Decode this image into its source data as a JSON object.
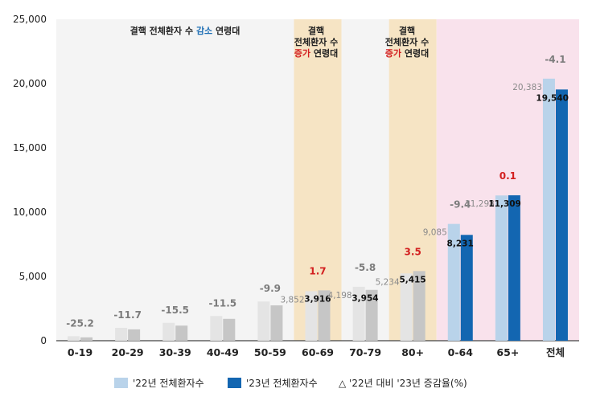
{
  "chart_data": {
    "type": "bar",
    "ylim": [
      0,
      25000
    ],
    "yticks": [
      "0",
      "5,000",
      "10,000",
      "15,000",
      "20,000",
      "25,000"
    ],
    "yticks_values": [
      0,
      5000,
      10000,
      15000,
      20000,
      25000
    ],
    "categories": [
      "0-19",
      "20-29",
      "30-39",
      "40-49",
      "50-59",
      "60-69",
      "70-79",
      "80+",
      "0-64",
      "65+",
      "전체"
    ],
    "series": [
      {
        "name": "'22년 전체환자수",
        "values": [
          350,
          1000,
          1390,
          1920,
          3050,
          3852,
          4198,
          5234,
          9085,
          11298,
          20383
        ],
        "value_labels": [
          "",
          "",
          "",
          "",
          "",
          "3,852",
          "4,198",
          "5,234",
          "9,085",
          "11,298",
          "20,383"
        ]
      },
      {
        "name": "'23년 전체환자수",
        "values": [
          262,
          883,
          1175,
          1700,
          2750,
          3916,
          3954,
          5415,
          8231,
          11309,
          19540
        ],
        "value_labels": [
          "",
          "",
          "",
          "",
          "",
          "3,916",
          "3,954",
          "5,415",
          "8,231",
          "11,309",
          "19,540"
        ]
      }
    ],
    "change_rate": {
      "name": "△ '22년 대비 '23년 증감율(%)",
      "labels": [
        "-25.2",
        "-11.7",
        "-15.5",
        "-11.5",
        "-9.9",
        "1.7",
        "-5.8",
        "3.5",
        "-9.4",
        "0.1",
        "-4.1"
      ],
      "values": [
        -25.2,
        -11.7,
        -15.5,
        -11.5,
        -9.9,
        1.7,
        -5.8,
        3.5,
        -9.4,
        0.1,
        -4.1
      ]
    },
    "bands": {
      "decrease": {
        "title_a": "결핵 전체환자 수 ",
        "accent": "감소",
        "title_b": " 연령대"
      },
      "increase": {
        "line1": "결핵",
        "line2": "전체환자 수",
        "accent": "증가",
        "line3_rest": " 연령대"
      }
    },
    "colors": {
      "grey_2022": "#e4e4e4",
      "grey_2023": "#c6c6c6",
      "light_blue_2022": "#b9d3ea",
      "dark_blue_2023": "#1366b1",
      "band_decrease": "#f4f4f4",
      "band_increase": "#f6e4c4",
      "band_total": "#f9e2ec",
      "increase_text": "#d32020",
      "decrease_text": "#7c7c7c",
      "decrease_accent": "#1f6fb5"
    },
    "legend": {
      "position": "bottom",
      "items": [
        {
          "label": "'22년 전체환자수",
          "color": "#b9d3ea"
        },
        {
          "label": "'23년 전체환자수",
          "color": "#1366b1"
        },
        {
          "label": "△ '22년 대비 '23년 증감율(%)",
          "marker": "triangle"
        }
      ]
    }
  }
}
